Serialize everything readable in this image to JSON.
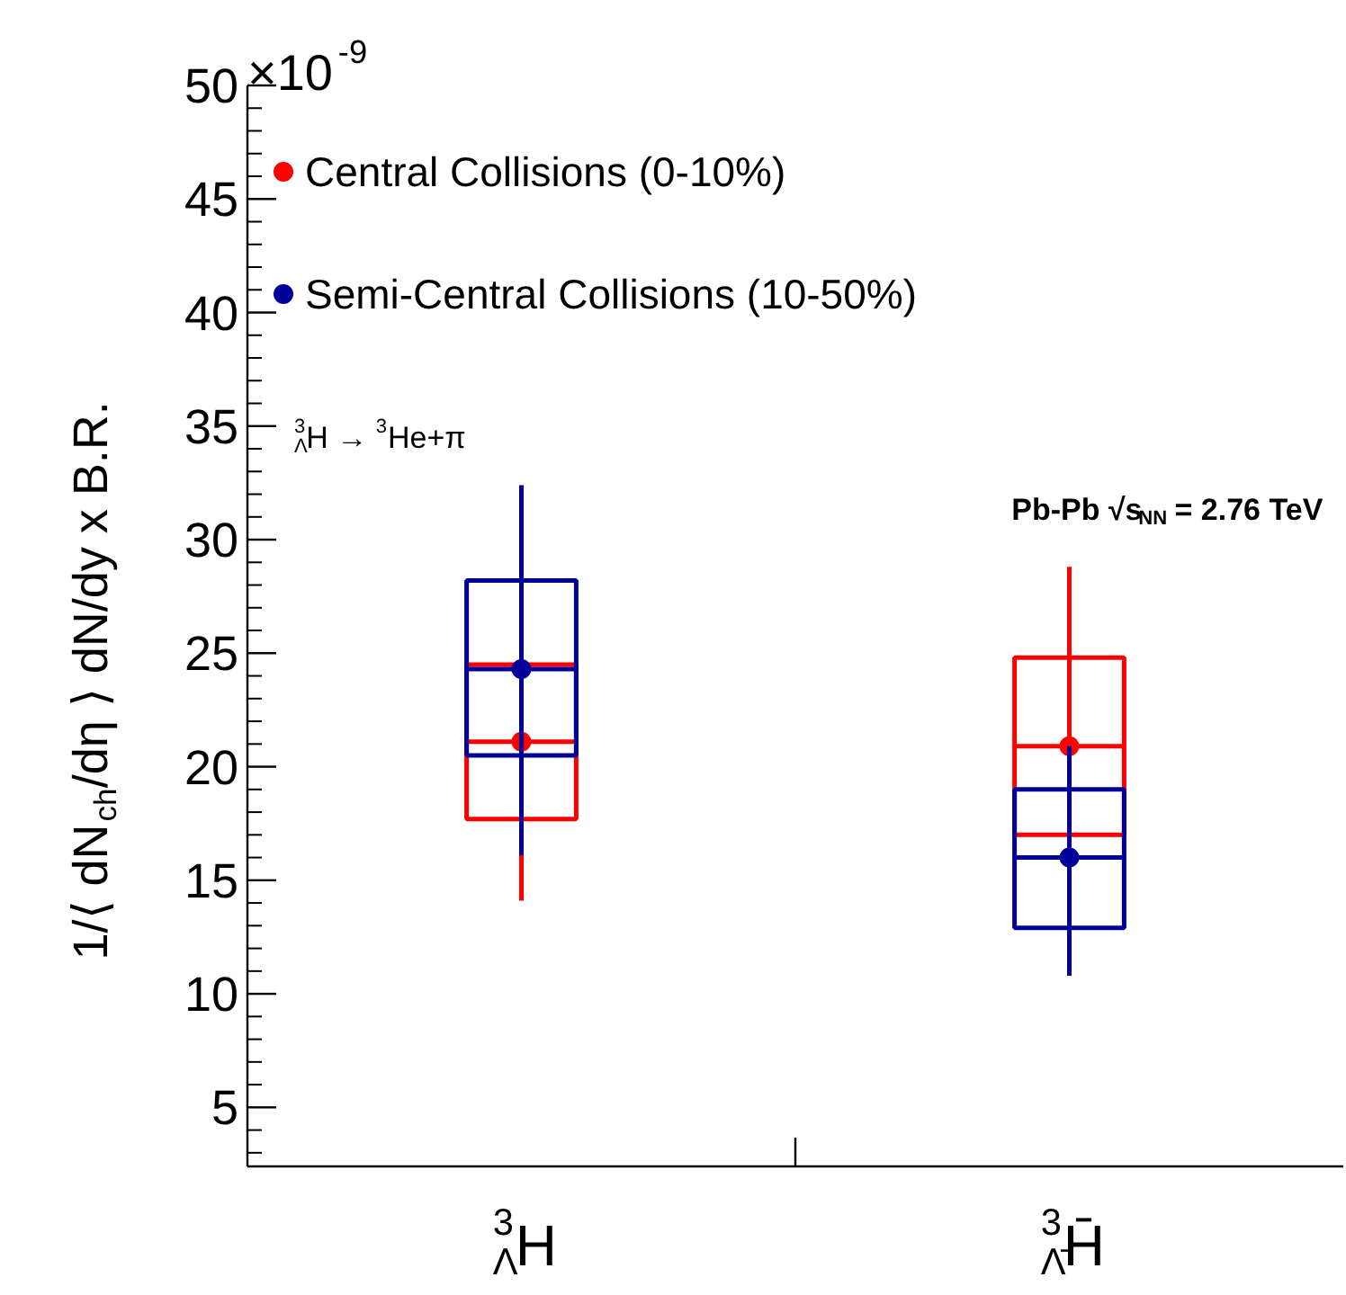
{
  "chart_data": {
    "type": "box",
    "ylabel": "1/⟨ dN$_{ch}$/dη ⟩ dN/dy x B.R.",
    "categories": [
      "$^{3}$$_{Λ}$H",
      "$^{3}$$_{Λ̄}$H̄"
    ],
    "series": [
      {
        "name": "Central Collisions (0-10%)",
        "color": "#ff0000",
        "boxes": [
          {
            "low": 14.1,
            "q1": 17.7,
            "median": 21.1,
            "q3": 24.5,
            "high": null,
            "mean": 21.1
          },
          {
            "low": null,
            "q1": 17.0,
            "median": 20.9,
            "q3": 24.8,
            "high": 28.8,
            "mean": 20.9
          }
        ]
      },
      {
        "name": "Semi-Central Collisions (10-50%)",
        "color": "#000099",
        "boxes": [
          {
            "low": 16.1,
            "q1": 20.5,
            "median": 24.3,
            "q3": 28.2,
            "high": 32.4,
            "mean": 24.3
          },
          {
            "low": 10.8,
            "q1": 12.9,
            "median": 16.0,
            "q3": 19.0,
            "high": 20.9,
            "mean": 16.0
          }
        ]
      }
    ],
    "ylim": [
      2.4,
      50
    ],
    "yticks": [
      5,
      10,
      15,
      20,
      25,
      30,
      35,
      40,
      45,
      50
    ],
    "annotations": [
      "×10$^{-9}$",
      "$^{3}$$_{Λ}$H → $^{3}$He+π",
      "Pb-Pb √s$_{NN}$ = 2.76 TeV"
    ],
    "legend": "top left",
    "grid": false,
    "marker": "circle"
  }
}
